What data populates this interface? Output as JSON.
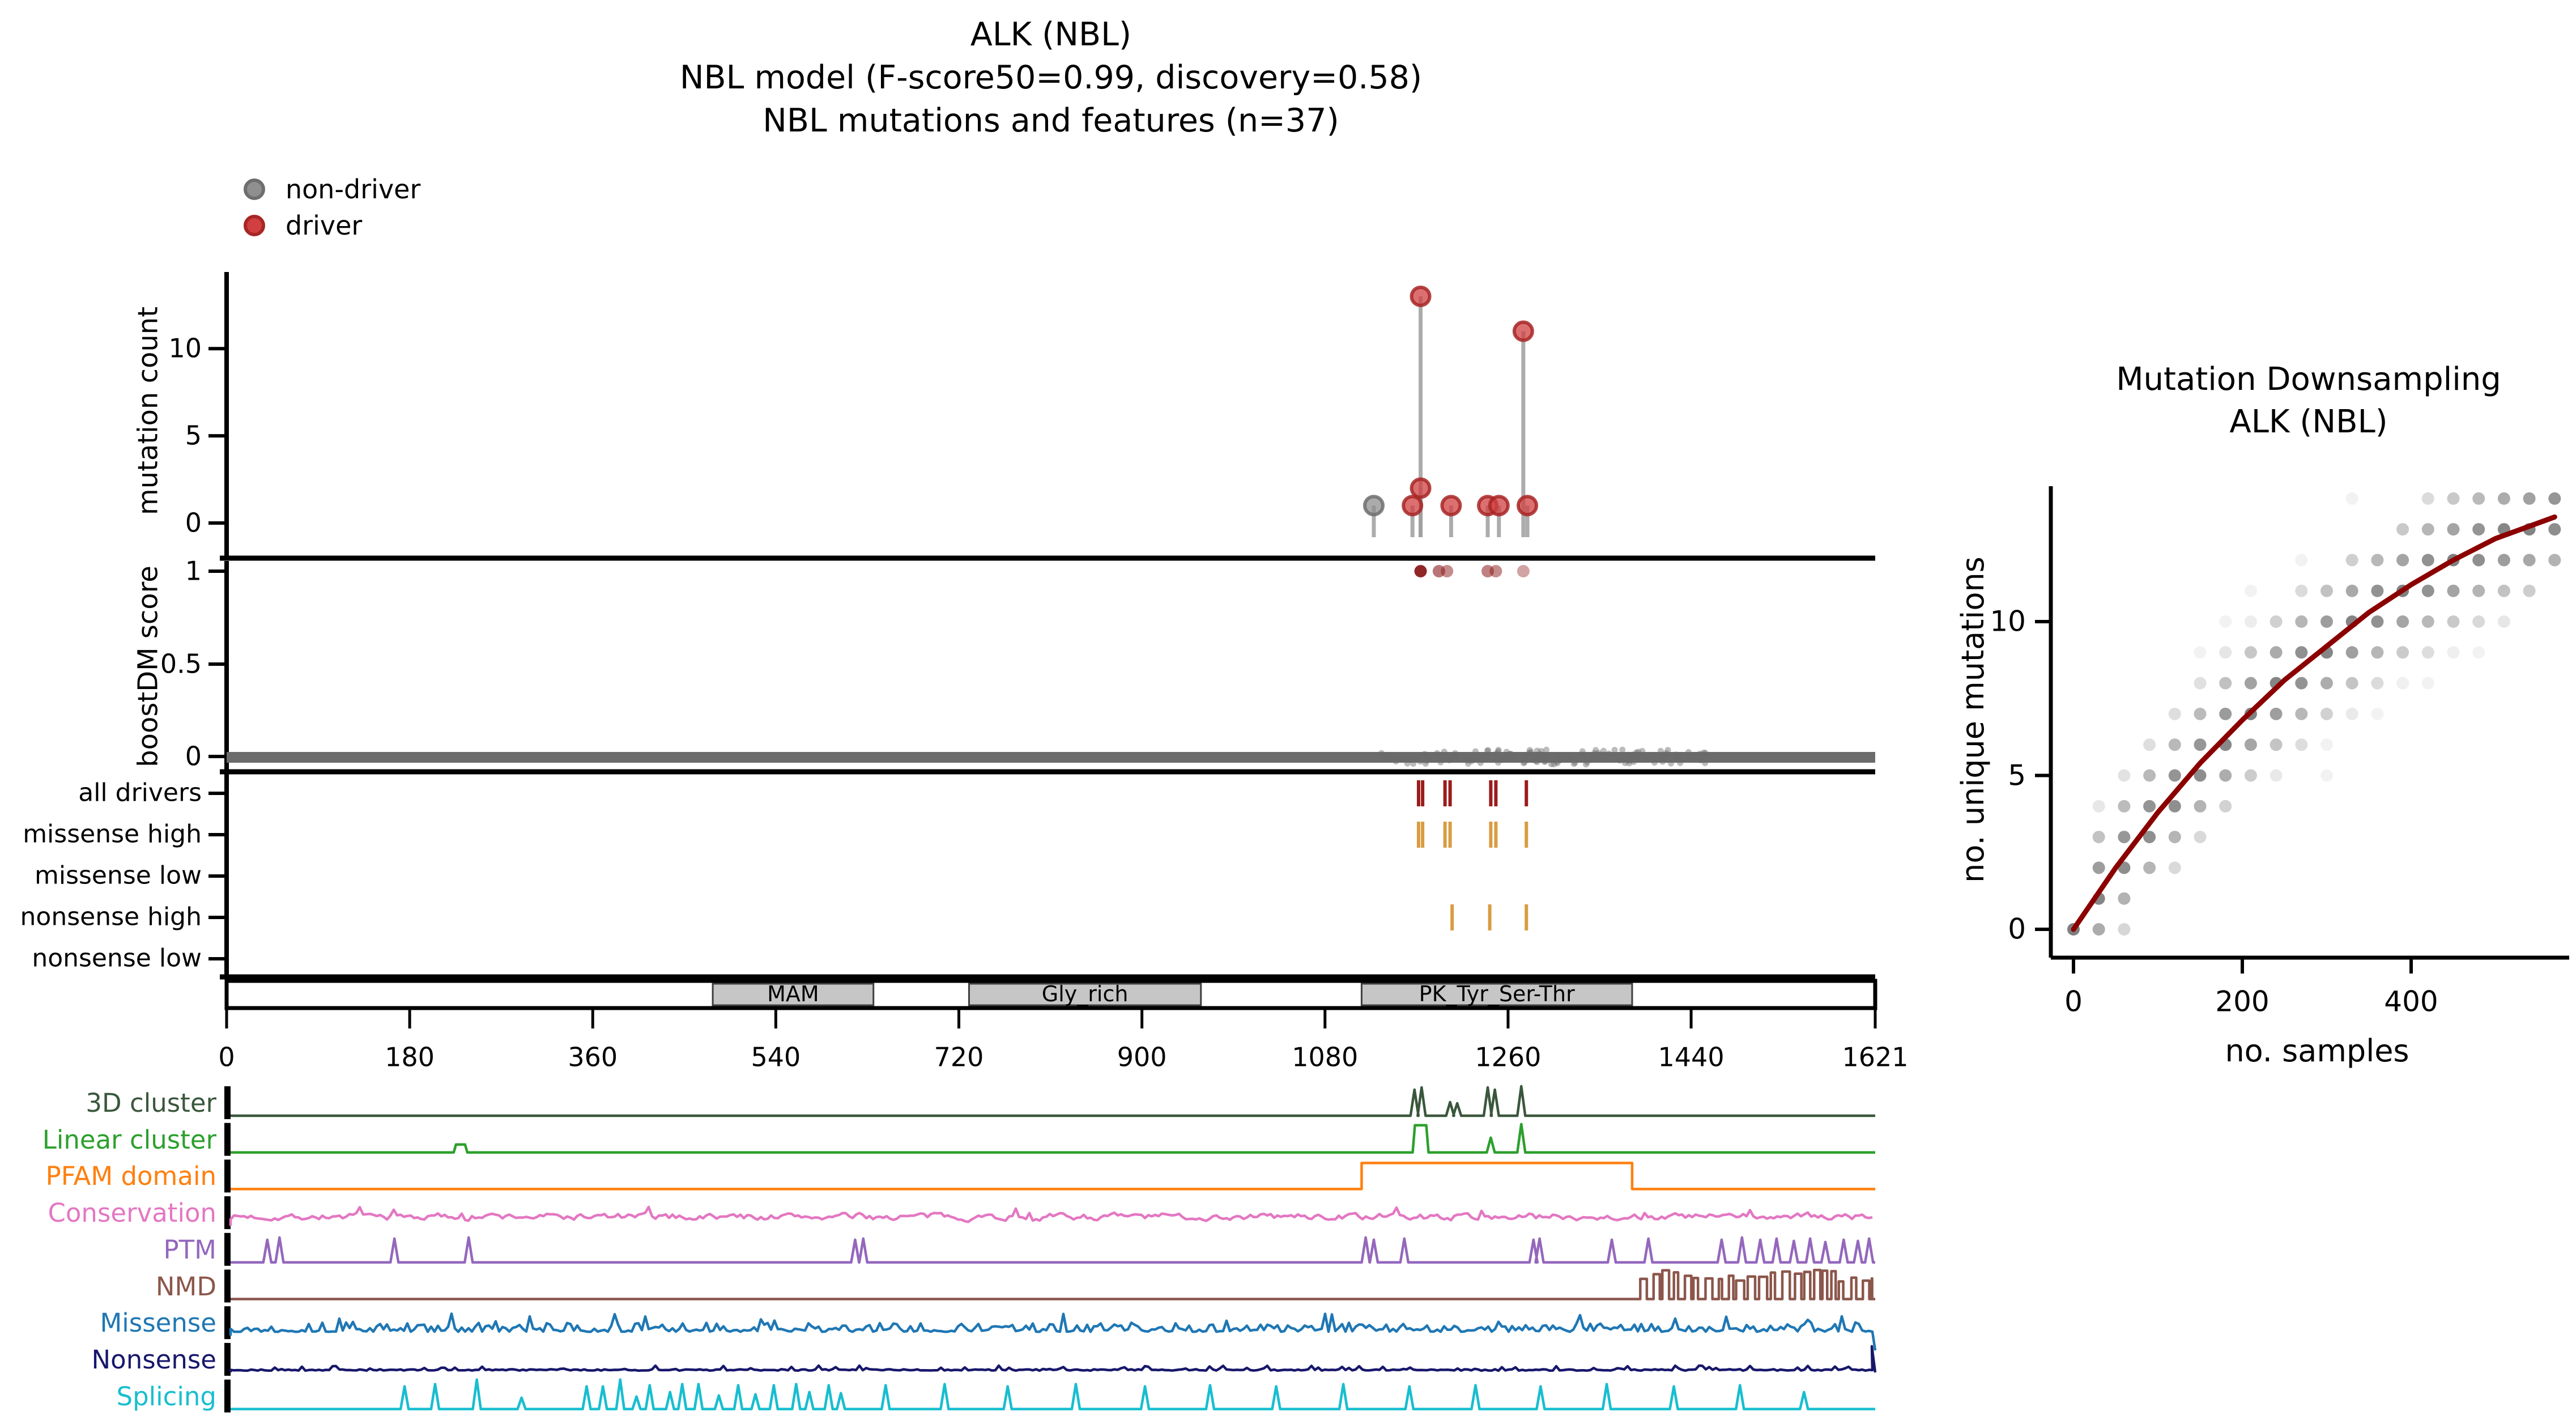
{
  "title": {
    "line1": "ALK (NBL)",
    "line2": "NBL model (F-score50=0.99, discovery=0.58)",
    "line3": "NBL mutations and features (n=37)"
  },
  "legend": {
    "items": [
      {
        "label": "non-driver",
        "fill": "#8f8f8f",
        "edge": "#6e6e6e"
      },
      {
        "label": "driver",
        "fill": "#d04040",
        "edge": "#a82626"
      }
    ]
  },
  "chart_data": [
    {
      "type": "scatter",
      "name": "mutation-needle-plot",
      "ylabel": "mutation count",
      "yticks": [
        0,
        5,
        10
      ],
      "xlim": [
        0,
        1621
      ],
      "legend": [
        "non-driver",
        "driver"
      ],
      "legend_position": "top-left",
      "stem_color": "#9e9e9e",
      "driver_fill": "#d04040",
      "driver_edge": "#a82626",
      "nondriver_fill": "#8f8f8f",
      "nondriver_edge": "#6e6e6e",
      "mutations": [
        {
          "pos": 1128,
          "count": 1,
          "class": "non-driver"
        },
        {
          "pos": 1166,
          "count": 1,
          "class": "driver"
        },
        {
          "pos": 1174,
          "count": 13,
          "class": "driver"
        },
        {
          "pos": 1174,
          "count": 2,
          "class": "driver"
        },
        {
          "pos": 1204,
          "count": 1,
          "class": "driver"
        },
        {
          "pos": 1240,
          "count": 1,
          "class": "driver"
        },
        {
          "pos": 1251,
          "count": 1,
          "class": "driver"
        },
        {
          "pos": 1275,
          "count": 11,
          "class": "driver"
        },
        {
          "pos": 1279,
          "count": 1,
          "class": "driver"
        }
      ]
    },
    {
      "type": "scatter",
      "name": "boostdm-score-panel",
      "ylabel": "boostDM score",
      "yticks": [
        "0",
        "0.5",
        "1"
      ],
      "dot_color": "#8b1a1a",
      "band_color": "#6b6b6b",
      "driver_score_dots": [
        {
          "pos": 1174,
          "score": 1,
          "alpha": 0.95
        },
        {
          "pos": 1192,
          "score": 1,
          "alpha": 0.6
        },
        {
          "pos": 1200,
          "score": 1,
          "alpha": 0.5
        },
        {
          "pos": 1240,
          "score": 1,
          "alpha": 0.55
        },
        {
          "pos": 1248,
          "score": 1,
          "alpha": 0.5
        },
        {
          "pos": 1275,
          "score": 1,
          "alpha": 0.4
        }
      ],
      "passenger_band": {
        "score": 0,
        "from": 0,
        "to": 1621
      },
      "band_bulge": {
        "from": 1130,
        "to": 1455
      }
    },
    {
      "type": "table",
      "name": "driver-category-tracks",
      "rows": [
        {
          "label": "all drivers",
          "color": "#9b1c1c",
          "ticks": [
            1172,
            1176,
            1198,
            1203,
            1243,
            1248,
            1278
          ]
        },
        {
          "label": "missense high",
          "color": "#d99c42",
          "ticks": [
            1172,
            1176,
            1198,
            1203,
            1243,
            1248,
            1278
          ]
        },
        {
          "label": "missense low",
          "color": "#d99c42",
          "ticks": []
        },
        {
          "label": "nonsense high",
          "color": "#d99c42",
          "ticks": [
            1205,
            1242,
            1278
          ]
        },
        {
          "label": "nonsense low",
          "color": "#d99c42",
          "ticks": []
        }
      ]
    },
    {
      "type": "bar",
      "name": "protein-domain-axis",
      "xticks": [
        0,
        180,
        360,
        540,
        720,
        900,
        1080,
        1260,
        1440,
        1621
      ],
      "xmax": 1621,
      "box_fill": "#c6c6c6",
      "box_edge": "#3f3f3f",
      "domains": [
        {
          "name": "MAM",
          "start": 478,
          "end": 636
        },
        {
          "name": "Gly_rich",
          "start": 730,
          "end": 958
        },
        {
          "name": "PK_Tyr_Ser-Thr",
          "start": 1116,
          "end": 1382
        }
      ]
    },
    {
      "type": "line",
      "name": "feature-tracks",
      "tracks": [
        {
          "name": "3D cluster",
          "color": "#3a573c",
          "kind": "spikes",
          "spikes": [
            [
              1168,
              46
            ],
            [
              1175,
              50
            ],
            [
              1203,
              24
            ],
            [
              1210,
              22
            ],
            [
              1240,
              50
            ],
            [
              1247,
              46
            ],
            [
              1273,
              52
            ]
          ]
        },
        {
          "name": "Linear cluster",
          "color": "#2ca02c",
          "kind": "pulse",
          "pulses": [
            [
              230,
              12,
              14
            ],
            [
              1174,
              14,
              48
            ]
          ],
          "spikes": [
            [
              1243,
              26
            ],
            [
              1273,
              50
            ]
          ]
        },
        {
          "name": "PFAM domain",
          "color": "#ff7f0e",
          "kind": "step",
          "step": {
            "start": 1116,
            "end": 1382,
            "h": 46
          }
        },
        {
          "name": "Conservation",
          "color": "#e377c2",
          "kind": "noise",
          "amp": 11,
          "seed": 7
        },
        {
          "name": "PTM",
          "color": "#9467bd",
          "kind": "spikes",
          "spikes": [
            [
              40,
              40
            ],
            [
              52,
              44
            ],
            [
              165,
              42
            ],
            [
              238,
              44
            ],
            [
              618,
              40
            ],
            [
              626,
              42
            ],
            [
              1120,
              44
            ],
            [
              1128,
              40
            ],
            [
              1158,
              42
            ],
            [
              1285,
              40
            ],
            [
              1291,
              42
            ],
            [
              1362,
              40
            ],
            [
              1398,
              42
            ],
            [
              1470,
              40
            ],
            [
              1490,
              44
            ],
            [
              1508,
              40
            ],
            [
              1524,
              42
            ],
            [
              1541,
              38
            ],
            [
              1557,
              42
            ],
            [
              1572,
              36
            ],
            [
              1590,
              40
            ],
            [
              1604,
              38
            ],
            [
              1615,
              42
            ]
          ]
        },
        {
          "name": "NMD",
          "color": "#8c564b",
          "kind": "comb",
          "comb": {
            "start": 1390,
            "end": 1618,
            "h": 44
          }
        },
        {
          "name": "Missense",
          "color": "#1f77b4",
          "kind": "noise",
          "amp": 16,
          "seed": 13,
          "end_drop": true
        },
        {
          "name": "Nonsense",
          "color": "#17176b",
          "kind": "noise",
          "amp": 9,
          "seed": 29,
          "end_spike": 46
        },
        {
          "name": "Splicing",
          "color": "#17becf",
          "kind": "spikes",
          "spikes": [
            [
              175,
              40
            ],
            [
              205,
              44
            ],
            [
              246,
              52
            ],
            [
              290,
              20
            ],
            [
              354,
              40
            ],
            [
              370,
              40
            ],
            [
              387,
              52
            ],
            [
              403,
              22
            ],
            [
              416,
              42
            ],
            [
              436,
              30
            ],
            [
              448,
              44
            ],
            [
              464,
              44
            ],
            [
              484,
              24
            ],
            [
              503,
              42
            ],
            [
              520,
              26
            ],
            [
              538,
              42
            ],
            [
              560,
              44
            ],
            [
              573,
              30
            ],
            [
              592,
              42
            ],
            [
              604,
              28
            ],
            [
              648,
              42
            ],
            [
              706,
              44
            ],
            [
              768,
              40
            ],
            [
              835,
              44
            ],
            [
              903,
              40
            ],
            [
              967,
              42
            ],
            [
              1032,
              40
            ],
            [
              1098,
              44
            ],
            [
              1163,
              40
            ],
            [
              1228,
              42
            ],
            [
              1292,
              40
            ],
            [
              1357,
              44
            ],
            [
              1423,
              40
            ],
            [
              1488,
              42
            ],
            [
              1551,
              30
            ]
          ]
        }
      ]
    },
    {
      "type": "scatter",
      "name": "mutation-downsampling",
      "title_line1": "Mutation Downsampling",
      "title_line2": "ALK (NBL)",
      "xlabel": "no. samples",
      "ylabel": "no. unique mutations",
      "xticks": [
        0,
        200,
        400
      ],
      "yticks": [
        0,
        5,
        10
      ],
      "curve_color": "#8b0000",
      "dot_color": "#4d4d4d",
      "curve": [
        [
          0,
          0
        ],
        [
          50,
          2
        ],
        [
          100,
          3.8
        ],
        [
          150,
          5.4
        ],
        [
          200,
          6.8
        ],
        [
          250,
          8.1
        ],
        [
          300,
          9.2
        ],
        [
          350,
          10.3
        ],
        [
          400,
          11.2
        ],
        [
          450,
          12
        ],
        [
          500,
          12.7
        ],
        [
          550,
          13.2
        ],
        [
          570,
          13.4
        ]
      ],
      "scatter": [
        [
          0,
          [
            0
          ]
        ],
        [
          30,
          [
            0,
            1,
            2,
            3,
            4
          ]
        ],
        [
          60,
          [
            0,
            1,
            2,
            3,
            4,
            5
          ]
        ],
        [
          90,
          [
            2,
            3,
            4,
            5,
            6
          ]
        ],
        [
          120,
          [
            2,
            3,
            4,
            5,
            6,
            7
          ]
        ],
        [
          150,
          [
            3,
            4,
            5,
            6,
            7,
            8,
            9
          ]
        ],
        [
          180,
          [
            4,
            5,
            6,
            7,
            8,
            9,
            10
          ]
        ],
        [
          210,
          [
            5,
            6,
            7,
            8,
            9,
            10,
            11
          ]
        ],
        [
          240,
          [
            5,
            6,
            7,
            8,
            9,
            10
          ]
        ],
        [
          270,
          [
            6,
            7,
            8,
            9,
            10,
            11,
            12
          ]
        ],
        [
          300,
          [
            5,
            6,
            7,
            8,
            9,
            10,
            11
          ]
        ],
        [
          330,
          [
            7,
            8,
            9,
            10,
            11,
            12,
            14
          ]
        ],
        [
          360,
          [
            7,
            8,
            9,
            10,
            11,
            12
          ]
        ],
        [
          390,
          [
            8,
            9,
            10,
            11,
            12,
            13
          ]
        ],
        [
          420,
          [
            8,
            9,
            10,
            11,
            12,
            13,
            14
          ]
        ],
        [
          450,
          [
            9,
            10,
            11,
            12,
            13,
            14
          ]
        ],
        [
          480,
          [
            9,
            10,
            11,
            12,
            13,
            14
          ]
        ],
        [
          510,
          [
            10,
            11,
            12,
            13,
            14
          ]
        ],
        [
          540,
          [
            11,
            12,
            13,
            14
          ]
        ],
        [
          570,
          [
            12,
            13,
            14
          ]
        ]
      ]
    }
  ]
}
